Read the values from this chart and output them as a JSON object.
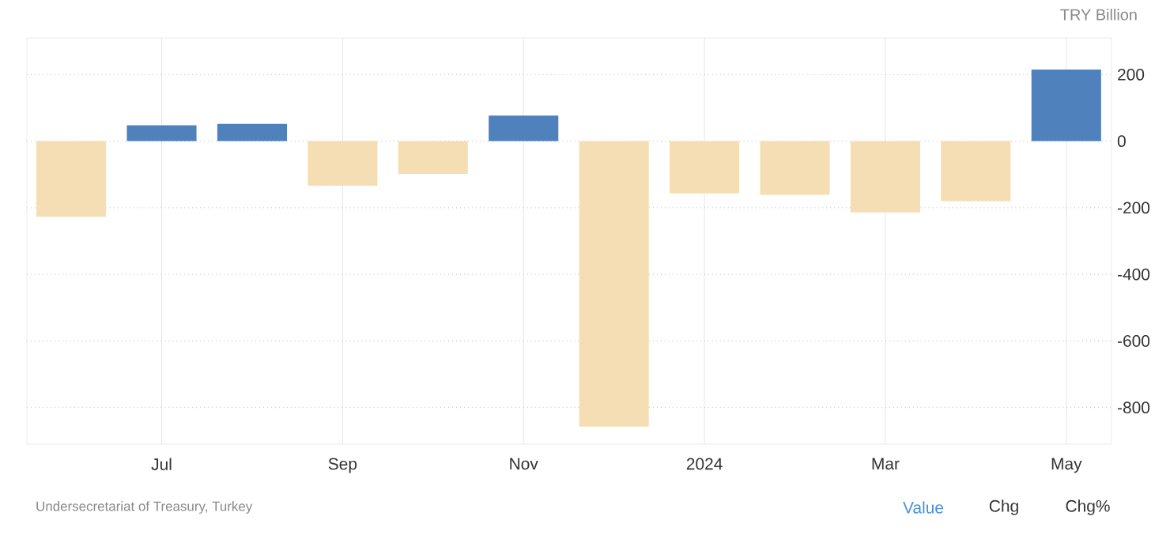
{
  "chart_data": {
    "type": "bar",
    "ylabel": "TRY Billion",
    "categories": [
      null,
      "Jul",
      null,
      "Sep",
      null,
      "Nov",
      null,
      "2024",
      null,
      "Mar",
      null,
      "May"
    ],
    "values": [
      -227,
      48,
      52,
      -134,
      -98,
      77,
      -857,
      -157,
      -161,
      -214,
      -180,
      215
    ],
    "colors": [
      "#f5deb3",
      "#4f81bd",
      "#4f81bd",
      "#f5deb3",
      "#f5deb3",
      "#4f81bd",
      "#f5deb3",
      "#f5deb3",
      "#f5deb3",
      "#f5deb3",
      "#f5deb3",
      "#4f81bd"
    ],
    "ylim": [
      -910,
      310
    ],
    "yticks": [
      -800,
      -600,
      -400,
      -200,
      0,
      200
    ],
    "grid": true,
    "annotations": [
      "Undersecretariat of Treasury, Turkey",
      "Value",
      "Chg",
      "Chg%"
    ]
  }
}
